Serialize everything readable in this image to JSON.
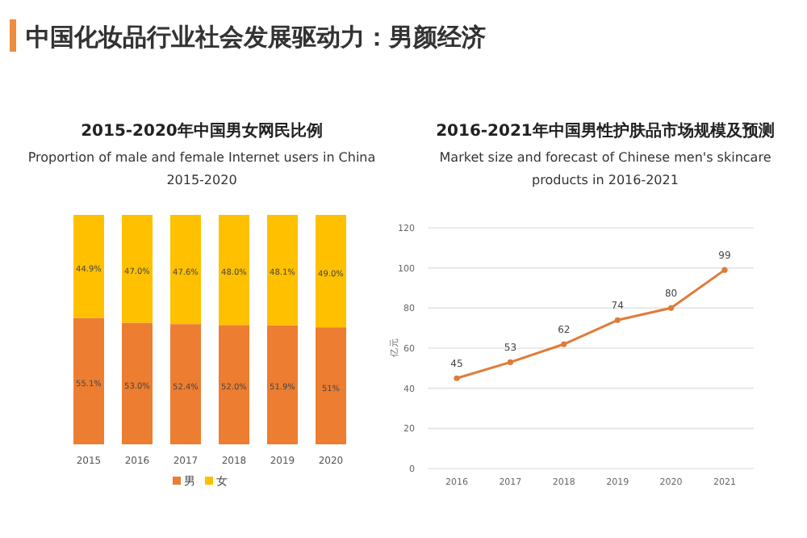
{
  "chart_data": [
    {
      "type": "other",
      "title": "中国化妆品行业社会发展驱动力：男颜经济"
    },
    {
      "type": "bar",
      "stacked": true,
      "title": "2015-2020年中国男女网民比例",
      "subtitle": "Proportion of male and female Internet users in China 2015-2020",
      "categories": [
        "2015",
        "2016",
        "2017",
        "2018",
        "2019",
        "2020"
      ],
      "legend": "bottom",
      "series": [
        {
          "name": "男",
          "color": "#ed7d31",
          "values": [
            55.1,
            53.0,
            52.4,
            52.0,
            51.9,
            51
          ],
          "value_labels": [
            "55.1%",
            "53.0%",
            "52.4%",
            "52.0%",
            "51.9%",
            "51%"
          ]
        },
        {
          "name": "女",
          "color": "#ffc000",
          "values": [
            44.9,
            47.0,
            47.6,
            48.0,
            48.1,
            49.0
          ],
          "value_labels": [
            "44.9%",
            "47.0%",
            "47.6%",
            "48.0%",
            "48.1%",
            "49.0%"
          ]
        }
      ]
    },
    {
      "type": "line",
      "title": "2016-2021年中国男性护肤品市场规模及预测",
      "subtitle": "Market size and forecast of Chinese men's skincare products in 2016-2021",
      "ylabel": "亿元",
      "categories": [
        "2016",
        "2017",
        "2018",
        "2019",
        "2020",
        "2021"
      ],
      "ylim": [
        0,
        120
      ],
      "yticks": [
        0,
        20,
        40,
        60,
        80,
        100,
        120
      ],
      "grid": "y",
      "marker": "circle",
      "data_labels": true,
      "series": [
        {
          "color": "#e07b39",
          "values": [
            45,
            53,
            62,
            74,
            80,
            99
          ]
        }
      ]
    }
  ]
}
